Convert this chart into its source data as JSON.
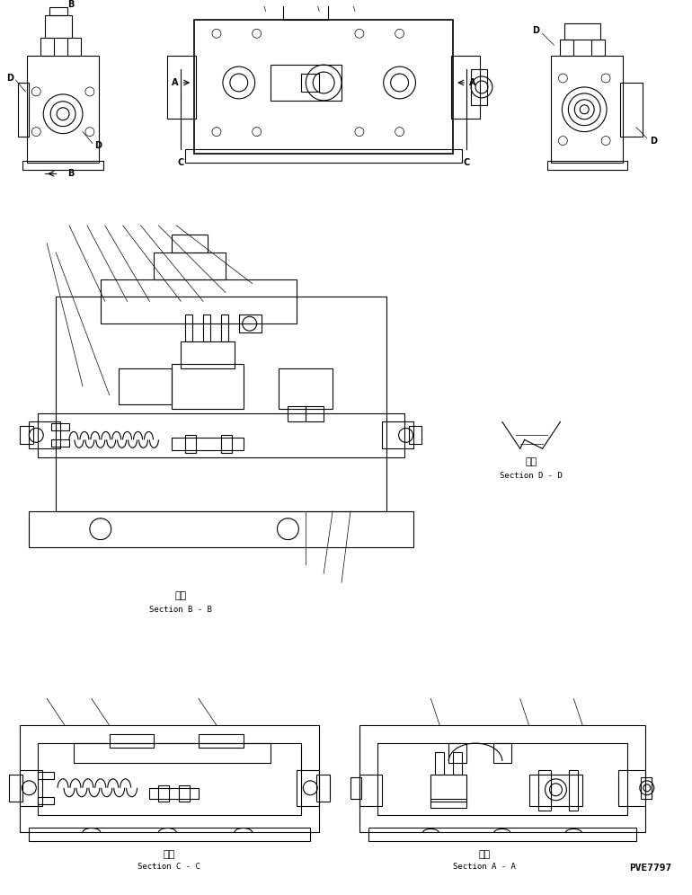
{
  "bg_color": "#ffffff",
  "line_color": "#000000",
  "line_width": 0.8,
  "thin_line": 0.5,
  "thick_line": 1.2,
  "fig_width": 7.7,
  "fig_height": 9.96,
  "dpi": 100,
  "texts": {
    "B_top": "B",
    "B_bottom": "B",
    "D_left1": "D",
    "D_left2": "D",
    "D_right1": "D",
    "D_right2": "D",
    "A_left": "A",
    "A_right": "A",
    "C_left": "C",
    "C_right": "C",
    "section_bb_kanji": "断面",
    "section_bb": "Section B - B",
    "section_dd_kanji": "断面",
    "section_dd": "Section D - D",
    "section_cc_kanji": "断面",
    "section_cc": "Section C - C",
    "section_aa_kanji": "断面",
    "section_aa": "Section A - A",
    "part_number": "PVE7797"
  },
  "font_sizes": {
    "label": 7,
    "section": 6.5,
    "kanji": 8,
    "part_no": 8
  }
}
